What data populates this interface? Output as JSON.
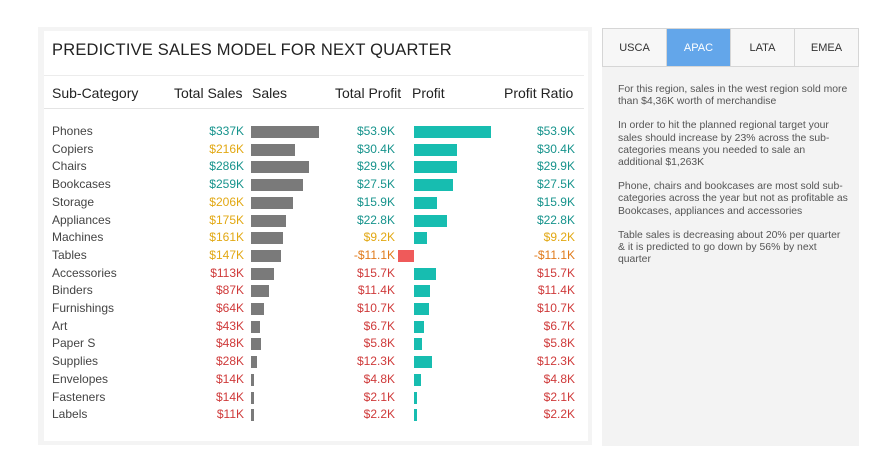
{
  "title": "PREDICTIVE SALES MODEL FOR NEXT QUARTER",
  "columns": {
    "subcategory": "Sub-Category",
    "total_sales": "Total Sales",
    "sales": "Sales",
    "total_profit": "Total Profit",
    "profit": "Profit",
    "profit_ratio": "Profit Ratio"
  },
  "tabs": [
    {
      "label": "USCA",
      "active": false
    },
    {
      "label": "APAC",
      "active": true
    },
    {
      "label": "LATA",
      "active": false
    },
    {
      "label": "EMEA",
      "active": false
    }
  ],
  "notes": [
    "For this region, sales in the west region sold more than $4,36K worth of merchandise",
    "In order to hit the planned regional target your sales should increase by 23% across the sub-categories means you needed to sale an additional $1,263K",
    "Phone, chairs and bookcases are most sold sub-categories across the year but not as profitable as Bookcases, appliances and accessories",
    "Table sales is decreasing about 20% per quarter & it is predicted to go down by 56% by next quarter"
  ],
  "colors": {
    "teal_text": "#16938c",
    "amber_text": "#e2a813",
    "red_text": "#cf3a3a",
    "orange_text": "#e07a1a",
    "sales_bar": "#7a7a7a",
    "profit_bar": "#17bdb0",
    "negative_bar": "#ef5a5a",
    "active_tab": "#63a6ea"
  },
  "chart_data": {
    "type": "table",
    "rows": [
      {
        "name": "Phones",
        "total_sales": "$337K",
        "sales": 337,
        "total_profit": "$53.9K",
        "profit": 53.9,
        "profit_ratio": "$53.9K",
        "sales_color": "#16938c",
        "profit_color": "#16938c"
      },
      {
        "name": "Copiers",
        "total_sales": "$216K",
        "sales": 216,
        "total_profit": "$30.4K",
        "profit": 30.4,
        "profit_ratio": "$30.4K",
        "sales_color": "#e2a813",
        "profit_color": "#16938c"
      },
      {
        "name": "Chairs",
        "total_sales": "$286K",
        "sales": 286,
        "total_profit": "$29.9K",
        "profit": 29.9,
        "profit_ratio": "$29.9K",
        "sales_color": "#16938c",
        "profit_color": "#16938c"
      },
      {
        "name": "Bookcases",
        "total_sales": "$259K",
        "sales": 259,
        "total_profit": "$27.5K",
        "profit": 27.5,
        "profit_ratio": "$27.5K",
        "sales_color": "#16938c",
        "profit_color": "#16938c"
      },
      {
        "name": "Storage",
        "total_sales": "$206K",
        "sales": 206,
        "total_profit": "$15.9K",
        "profit": 15.9,
        "profit_ratio": "$15.9K",
        "sales_color": "#e2a813",
        "profit_color": "#16938c"
      },
      {
        "name": "Appliances",
        "total_sales": "$175K",
        "sales": 175,
        "total_profit": "$22.8K",
        "profit": 22.8,
        "profit_ratio": "$22.8K",
        "sales_color": "#e2a813",
        "profit_color": "#16938c"
      },
      {
        "name": "Machines",
        "total_sales": "$161K",
        "sales": 161,
        "total_profit": "$9.2K",
        "profit": 9.2,
        "profit_ratio": "$9.2K",
        "sales_color": "#e2a813",
        "profit_color": "#e2a813"
      },
      {
        "name": "Tables",
        "total_sales": "$147K",
        "sales": 147,
        "total_profit": "-$11.1K",
        "profit": -11.1,
        "profit_ratio": "-$11.1K",
        "sales_color": "#e2a813",
        "profit_color": "#e07a1a"
      },
      {
        "name": "Accessories",
        "total_sales": "$113K",
        "sales": 113,
        "total_profit": "$15.7K",
        "profit": 15.7,
        "profit_ratio": "$15.7K",
        "sales_color": "#cf3a3a",
        "profit_color": "#cf3a3a"
      },
      {
        "name": "Binders",
        "total_sales": "$87K",
        "sales": 87,
        "total_profit": "$11.4K",
        "profit": 11.4,
        "profit_ratio": "$11.4K",
        "sales_color": "#cf3a3a",
        "profit_color": "#cf3a3a"
      },
      {
        "name": "Furnishings",
        "total_sales": "$64K",
        "sales": 64,
        "total_profit": "$10.7K",
        "profit": 10.7,
        "profit_ratio": "$10.7K",
        "sales_color": "#cf3a3a",
        "profit_color": "#cf3a3a"
      },
      {
        "name": "Art",
        "total_sales": "$43K",
        "sales": 43,
        "total_profit": "$6.7K",
        "profit": 6.7,
        "profit_ratio": "$6.7K",
        "sales_color": "#cf3a3a",
        "profit_color": "#cf3a3a"
      },
      {
        "name": "Paper S",
        "total_sales": "$48K",
        "sales": 48,
        "total_profit": "$5.8K",
        "profit": 5.8,
        "profit_ratio": "$5.8K",
        "sales_color": "#cf3a3a",
        "profit_color": "#cf3a3a"
      },
      {
        "name": "Supplies",
        "total_sales": "$28K",
        "sales": 28,
        "total_profit": "$12.3K",
        "profit": 12.3,
        "profit_ratio": "$12.3K",
        "sales_color": "#cf3a3a",
        "profit_color": "#cf3a3a"
      },
      {
        "name": "Envelopes",
        "total_sales": "$14K",
        "sales": 14,
        "total_profit": "$4.8K",
        "profit": 4.8,
        "profit_ratio": "$4.8K",
        "sales_color": "#cf3a3a",
        "profit_color": "#cf3a3a"
      },
      {
        "name": "Fasteners",
        "total_sales": "$14K",
        "sales": 14,
        "total_profit": "$2.1K",
        "profit": 2.1,
        "profit_ratio": "$2.1K",
        "sales_color": "#cf3a3a",
        "profit_color": "#cf3a3a"
      },
      {
        "name": "Labels",
        "total_sales": "$11K",
        "sales": 11,
        "total_profit": "$2.2K",
        "profit": 2.2,
        "profit_ratio": "$2.2K",
        "sales_color": "#cf3a3a",
        "profit_color": "#cf3a3a"
      }
    ]
  }
}
